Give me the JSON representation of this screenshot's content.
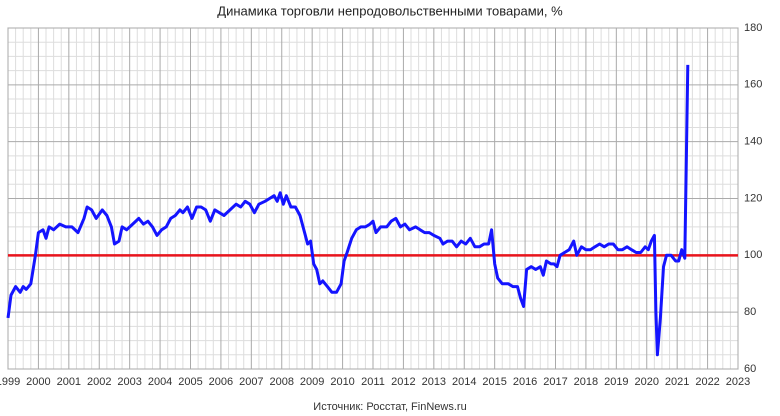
{
  "chart_data": {
    "type": "line",
    "title": "Динамика торговли непродовольственными товарами, %",
    "source": "Источник: Росстат, FinNews.ru",
    "x": [
      1999.0,
      1999.1,
      1999.25,
      1999.4,
      1999.5,
      1999.6,
      1999.75,
      1999.9,
      2000.0,
      2000.15,
      2000.25,
      2000.35,
      2000.5,
      2000.7,
      2000.9,
      2001.1,
      2001.3,
      2001.5,
      2001.6,
      2001.75,
      2001.9,
      2002.1,
      2002.25,
      2002.4,
      2002.5,
      2002.65,
      2002.75,
      2002.9,
      2003.1,
      2003.3,
      2003.45,
      2003.6,
      2003.75,
      2003.9,
      2004.05,
      2004.2,
      2004.35,
      2004.5,
      2004.65,
      2004.75,
      2004.9,
      2005.05,
      2005.2,
      2005.35,
      2005.5,
      2005.65,
      2005.8,
      2005.95,
      2006.1,
      2006.3,
      2006.5,
      2006.65,
      2006.8,
      2006.95,
      2007.1,
      2007.25,
      2007.45,
      2007.6,
      2007.75,
      2007.85,
      2007.95,
      2008.05,
      2008.15,
      2008.3,
      2008.45,
      2008.6,
      2008.75,
      2008.85,
      2008.95,
      2009.05,
      2009.15,
      2009.25,
      2009.35,
      2009.5,
      2009.65,
      2009.8,
      2009.95,
      2010.05,
      2010.15,
      2010.3,
      2010.45,
      2010.6,
      2010.75,
      2010.9,
      2011.0,
      2011.1,
      2011.25,
      2011.45,
      2011.6,
      2011.75,
      2011.9,
      2012.05,
      2012.2,
      2012.4,
      2012.55,
      2012.7,
      2012.85,
      2013.0,
      2013.2,
      2013.3,
      2013.45,
      2013.6,
      2013.75,
      2013.9,
      2014.05,
      2014.2,
      2014.35,
      2014.5,
      2014.65,
      2014.8,
      2014.9,
      2015.0,
      2015.1,
      2015.25,
      2015.45,
      2015.6,
      2015.75,
      2015.85,
      2015.95,
      2016.05,
      2016.2,
      2016.35,
      2016.5,
      2016.6,
      2016.7,
      2016.85,
      2016.95,
      2017.05,
      2017.15,
      2017.3,
      2017.45,
      2017.6,
      2017.7,
      2017.85,
      2018.0,
      2018.15,
      2018.3,
      2018.45,
      2018.6,
      2018.75,
      2018.9,
      2019.05,
      2019.2,
      2019.35,
      2019.5,
      2019.65,
      2019.8,
      2019.95,
      2020.05,
      2020.15,
      2020.25,
      2020.3,
      2020.35,
      2020.45,
      2020.55,
      2020.65,
      2020.8,
      2020.95,
      2021.05,
      2021.15,
      2021.25,
      2021.35
    ],
    "series": [
      {
        "name": "Динамика торговли непродовольственными товарами",
        "color": "#1414ff",
        "values": [
          78,
          86,
          89,
          87,
          89,
          88,
          90,
          100,
          108,
          109,
          106,
          110,
          109,
          111,
          110,
          110,
          108,
          113,
          117,
          116,
          113,
          116,
          114,
          110,
          104,
          105,
          110,
          109,
          111,
          113,
          111,
          112,
          110,
          107,
          109,
          110,
          113,
          114,
          116,
          115,
          117,
          113,
          117,
          117,
          116,
          112,
          116,
          115,
          114,
          116,
          118,
          117,
          119,
          118,
          115,
          118,
          119,
          120,
          121,
          119,
          122,
          118,
          121,
          117,
          117,
          114,
          108,
          104,
          105,
          97,
          95,
          90,
          91,
          89,
          87,
          87,
          90,
          98,
          101,
          106,
          109,
          110,
          110,
          111,
          112,
          108,
          110,
          110,
          112,
          113,
          110,
          111,
          109,
          110,
          109,
          108,
          108,
          107,
          106,
          104,
          105,
          105,
          103,
          105,
          104,
          106,
          103,
          103,
          104,
          104,
          109,
          97,
          92,
          90,
          90,
          89,
          89,
          85,
          82,
          95,
          96,
          95,
          96,
          93,
          98,
          97,
          97,
          96,
          100,
          101,
          102,
          105,
          100,
          103,
          102,
          102,
          103,
          104,
          103,
          104,
          104,
          102,
          102,
          103,
          102,
          101,
          101,
          103,
          102,
          105,
          107,
          80,
          65,
          78,
          96,
          100,
          100,
          98,
          98,
          102,
          99,
          167
        ]
      }
    ],
    "hline": {
      "value": 100,
      "color": "#e8141c"
    },
    "xlim": [
      1999,
      2023
    ],
    "xticks": [
      1999,
      2000,
      2001,
      2002,
      2003,
      2004,
      2005,
      2006,
      2007,
      2008,
      2009,
      2010,
      2011,
      2012,
      2013,
      2014,
      2015,
      2016,
      2017,
      2018,
      2019,
      2020,
      2021,
      2022,
      2023
    ],
    "ylim": [
      60,
      180
    ],
    "yticks": [
      60,
      80,
      100,
      120,
      140,
      160,
      180
    ],
    "grid": true,
    "minor_x": 4,
    "minor_y": 4
  }
}
